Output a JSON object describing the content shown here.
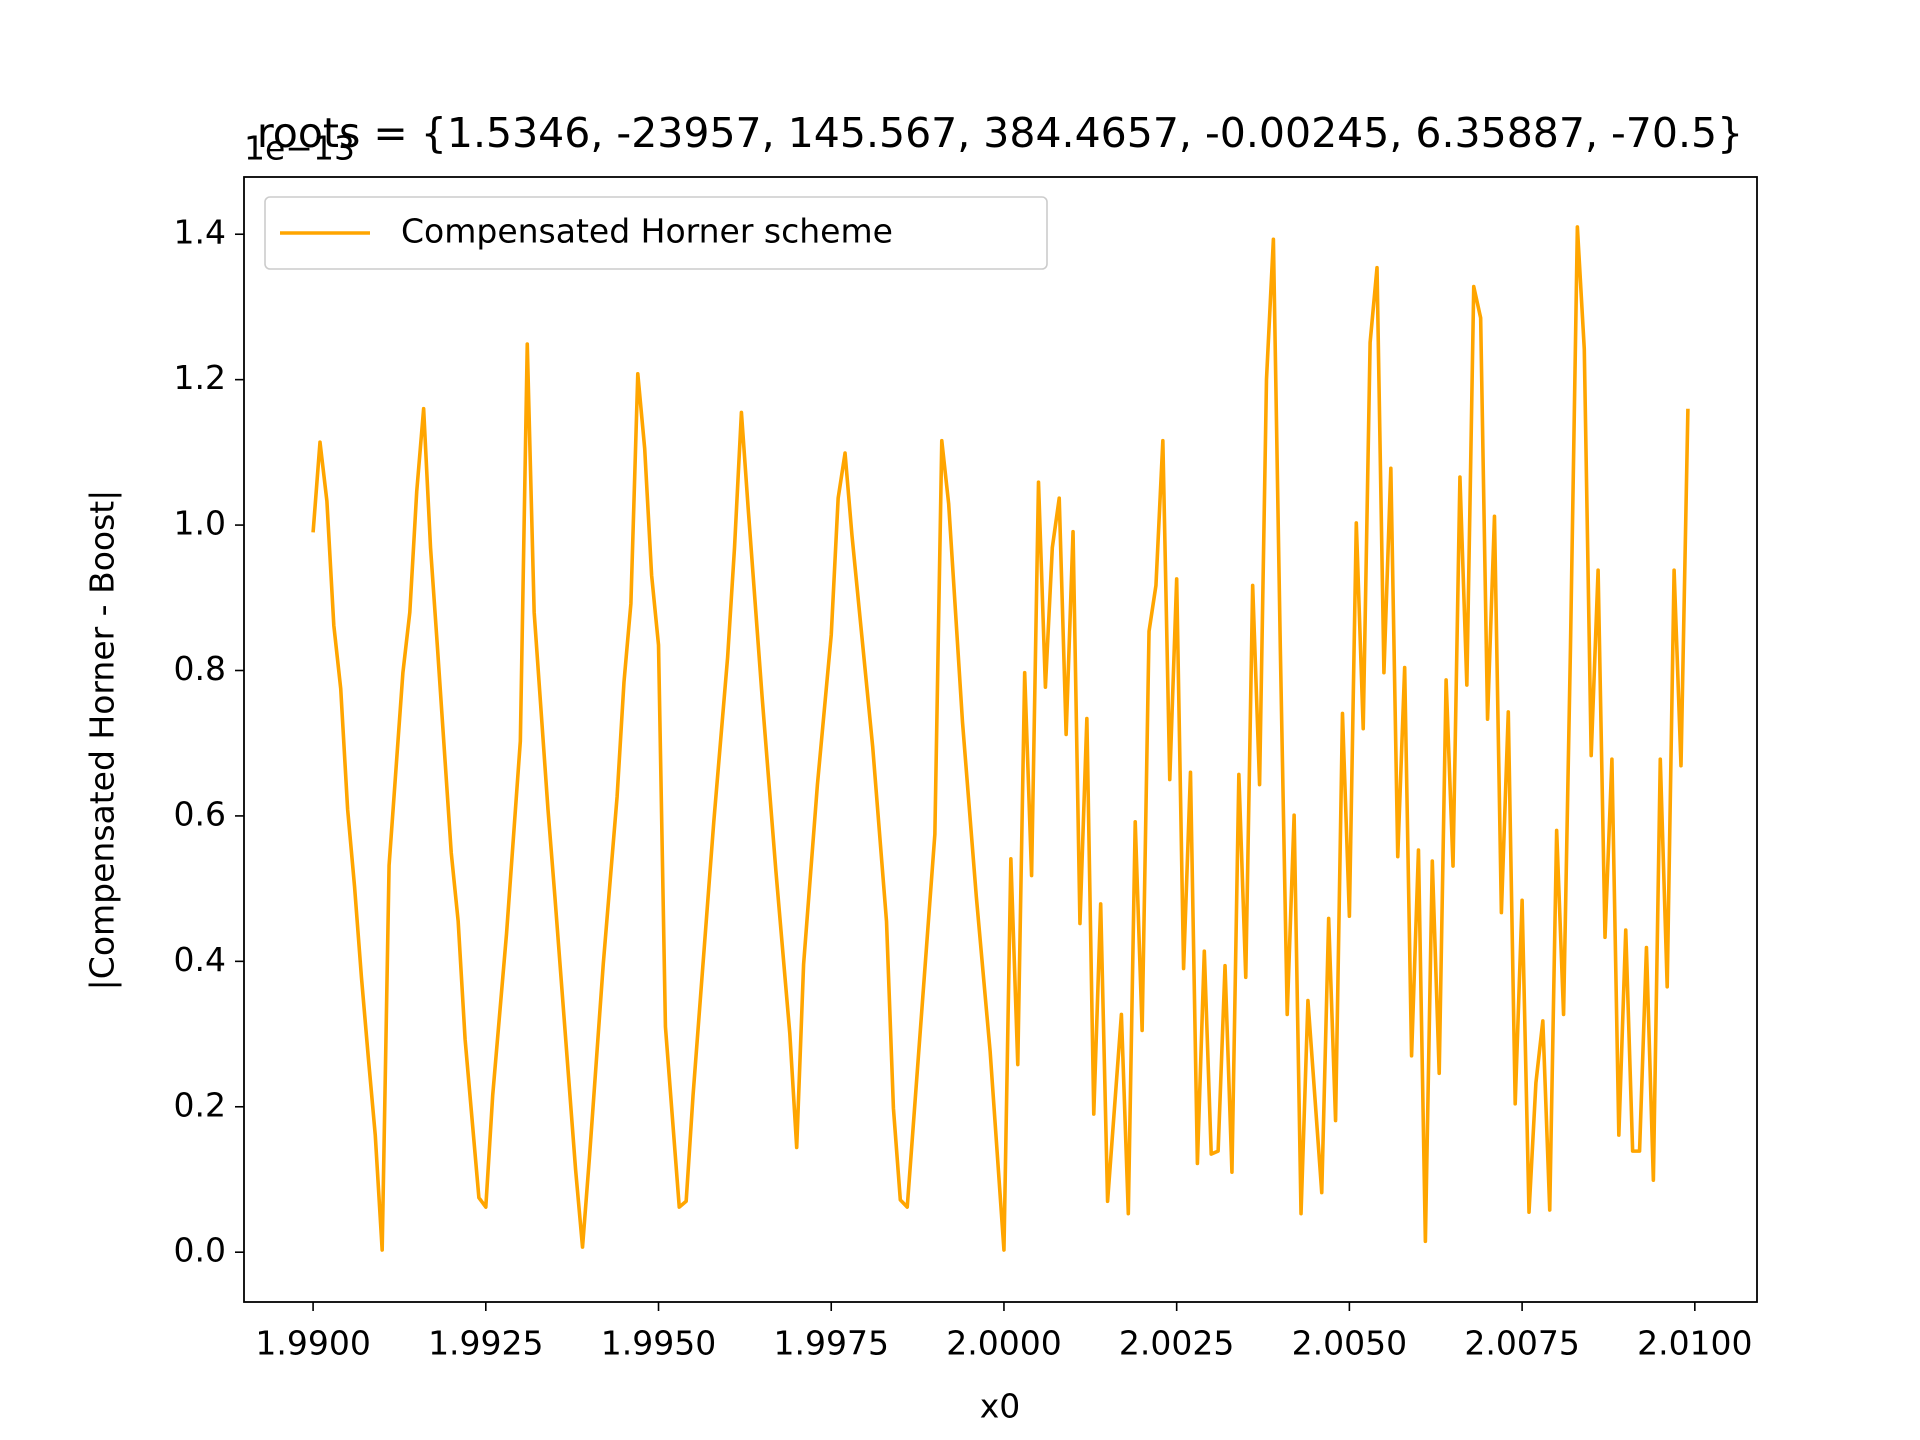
{
  "chart_data": {
    "type": "line",
    "title": "roots = {1.5346, -23957, 145.567, 384.4657, -0.00245, 6.35887, -70.5}",
    "x_label": "x0",
    "y_label": "|Compensated Horner - Boost|",
    "y_offset_label": "1e−13",
    "x": [
      1.99,
      1.9901,
      1.9902,
      1.9903,
      1.9904,
      1.9905,
      1.9906,
      1.9907,
      1.9908,
      1.9909,
      1.991,
      1.9911,
      1.9913,
      1.9914,
      1.9915,
      1.9916,
      1.9917,
      1.9918,
      1.992,
      1.9921,
      1.9922,
      1.9924,
      1.9925,
      1.9926,
      1.9928,
      1.993,
      1.9931,
      1.9932,
      1.9934,
      1.9935,
      1.9938,
      1.9939,
      1.994,
      1.9942,
      1.9944,
      1.9945,
      1.9946,
      1.9947,
      1.9948,
      1.9949,
      1.995,
      1.9951,
      1.9953,
      1.9954,
      1.9955,
      1.9958,
      1.996,
      1.9961,
      1.9962,
      1.9963,
      1.9965,
      1.9967,
      1.9969,
      1.997,
      1.9971,
      1.9973,
      1.9975,
      1.9976,
      1.9977,
      1.9978,
      1.9981,
      1.9983,
      1.9984,
      1.9985,
      1.9986,
      1.999,
      1.9991,
      1.9992,
      1.9994,
      1.9996,
      1.9998,
      2.0,
      2.0001,
      2.0002,
      2.0003,
      2.0004,
      2.0005,
      2.0006,
      2.0007,
      2.0008,
      2.0009,
      2.001,
      2.0011,
      2.0012,
      2.0013,
      2.0014,
      2.0015,
      2.0017,
      2.0018,
      2.0019,
      2.002,
      2.0021,
      2.0022,
      2.0023,
      2.0024,
      2.0025,
      2.0026,
      2.0027,
      2.0028,
      2.0029,
      2.003,
      2.0031,
      2.0032,
      2.0033,
      2.0034,
      2.0035,
      2.0036,
      2.0037,
      2.0038,
      2.0039,
      2.004,
      2.0041,
      2.0042,
      2.0043,
      2.0044,
      2.0046,
      2.0047,
      2.0048,
      2.0049,
      2.005,
      2.0051,
      2.0052,
      2.0053,
      2.0054,
      2.0055,
      2.0056,
      2.0057,
      2.0058,
      2.0059,
      2.006,
      2.0061,
      2.0062,
      2.0063,
      2.0064,
      2.0065,
      2.0066,
      2.0067,
      2.0068,
      2.0069,
      2.007,
      2.0071,
      2.0072,
      2.0073,
      2.0074,
      2.0075,
      2.0076,
      2.0077,
      2.0078,
      2.0079,
      2.008,
      2.0081,
      2.0082,
      2.0083,
      2.0084,
      2.0085,
      2.0086,
      2.0087,
      2.0088,
      2.0089,
      2.009,
      2.0091,
      2.0092,
      2.0093,
      2.0094,
      2.0095,
      2.0096,
      2.0097,
      2.0098,
      2.0099
    ],
    "series": [
      {
        "name": "Compensated Horner scheme",
        "color": "orange",
        "values": [
          0.99,
          1.114,
          1.033,
          0.862,
          0.775,
          0.609,
          0.503,
          0.378,
          0.267,
          0.161,
          0.003,
          0.532,
          0.797,
          0.88,
          1.046,
          1.16,
          0.969,
          0.832,
          0.549,
          0.455,
          0.293,
          0.075,
          0.062,
          0.216,
          0.438,
          0.703,
          1.249,
          0.88,
          0.609,
          0.489,
          0.113,
          0.007,
          0.13,
          0.396,
          0.626,
          0.784,
          0.892,
          1.208,
          1.105,
          0.931,
          0.835,
          0.31,
          0.062,
          0.07,
          0.216,
          0.592,
          0.818,
          0.969,
          1.155,
          1.02,
          0.763,
          0.523,
          0.301,
          0.144,
          0.396,
          0.643,
          0.849,
          1.037,
          1.099,
          0.986,
          0.695,
          0.455,
          0.198,
          0.072,
          0.062,
          0.575,
          1.116,
          1.029,
          0.729,
          0.489,
          0.276,
          0.003,
          0.541,
          0.258,
          0.797,
          0.518,
          1.059,
          0.777,
          0.969,
          1.037,
          0.712,
          0.991,
          0.452,
          0.734,
          0.19,
          0.479,
          0.07,
          0.327,
          0.053,
          0.592,
          0.305,
          0.854,
          0.917,
          1.116,
          0.65,
          0.926,
          0.39,
          0.66,
          0.122,
          0.414,
          0.135,
          0.139,
          0.394,
          0.11,
          0.657,
          0.378,
          0.917,
          0.643,
          1.2,
          1.393,
          0.832,
          0.327,
          0.601,
          0.053,
          0.346,
          0.082,
          0.459,
          0.181,
          0.741,
          0.462,
          1.003,
          0.72,
          1.251,
          1.354,
          0.797,
          1.078,
          0.544,
          0.804,
          0.27,
          0.553,
          0.015,
          0.538,
          0.246,
          0.787,
          0.531,
          1.066,
          0.78,
          1.328,
          1.285,
          0.733,
          1.012,
          0.467,
          0.743,
          0.204,
          0.484,
          0.055,
          0.233,
          0.318,
          0.058,
          0.58,
          0.327,
          0.832,
          1.41,
          1.242,
          0.683,
          0.938,
          0.433,
          0.678,
          0.161,
          0.443,
          0.139,
          0.139,
          0.419,
          0.099,
          0.678,
          0.365,
          0.938,
          0.669,
          1.16
        ]
      }
    ],
    "xlim": [
      1.989,
      2.0109
    ],
    "ylim": [
      -0.0685,
      1.4787
    ],
    "xticks": [
      {
        "value": 1.99,
        "label": "1.9900"
      },
      {
        "value": 1.9925,
        "label": "1.9925"
      },
      {
        "value": 1.995,
        "label": "1.9950"
      },
      {
        "value": 1.9975,
        "label": "1.9975"
      },
      {
        "value": 2.0,
        "label": "2.0000"
      },
      {
        "value": 2.0025,
        "label": "2.0025"
      },
      {
        "value": 2.005,
        "label": "2.0050"
      },
      {
        "value": 2.0075,
        "label": "2.0075"
      },
      {
        "value": 2.01,
        "label": "2.0100"
      }
    ],
    "yticks": [
      {
        "value": 0,
        "label": "0.0"
      },
      0.2,
      0.4,
      0.6,
      0.8,
      {
        "value": 1,
        "label": "1.0"
      },
      1.2,
      1.4
    ],
    "grid": false,
    "legend": "upper left"
  }
}
